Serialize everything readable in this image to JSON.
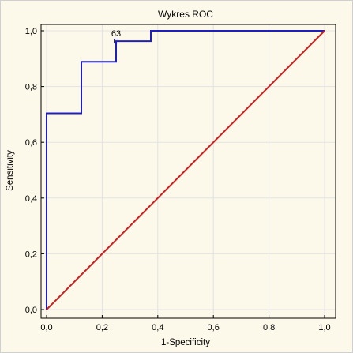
{
  "chart_data": {
    "type": "line",
    "title": "Wykres ROC",
    "xlabel": "1-Specificity",
    "ylabel": "Sensitivity",
    "xlim": [
      0,
      1
    ],
    "ylim": [
      0,
      1
    ],
    "grid": true,
    "xticks": [
      "0,0",
      "0,2",
      "0,4",
      "0,6",
      "0,8",
      "1,0"
    ],
    "yticks": [
      "0,0",
      "0,2",
      "0,4",
      "0,6",
      "0,8",
      "1,0"
    ],
    "series": [
      {
        "color": "#1f1fbf",
        "x": [
          0,
          0,
          0.125,
          0.125,
          0.25,
          0.25,
          0.25,
          0.375,
          0.375,
          1.0
        ],
        "y": [
          0,
          0.704,
          0.704,
          0.889,
          0.889,
          0.963,
          0.963,
          0.963,
          1.0,
          1.0
        ]
      },
      {
        "color": "#cc1f1f",
        "x": [
          0,
          1
        ],
        "y": [
          0,
          1
        ]
      }
    ],
    "annotations": [
      {
        "text": "63",
        "x": 0.25,
        "y": 0.963
      }
    ]
  }
}
